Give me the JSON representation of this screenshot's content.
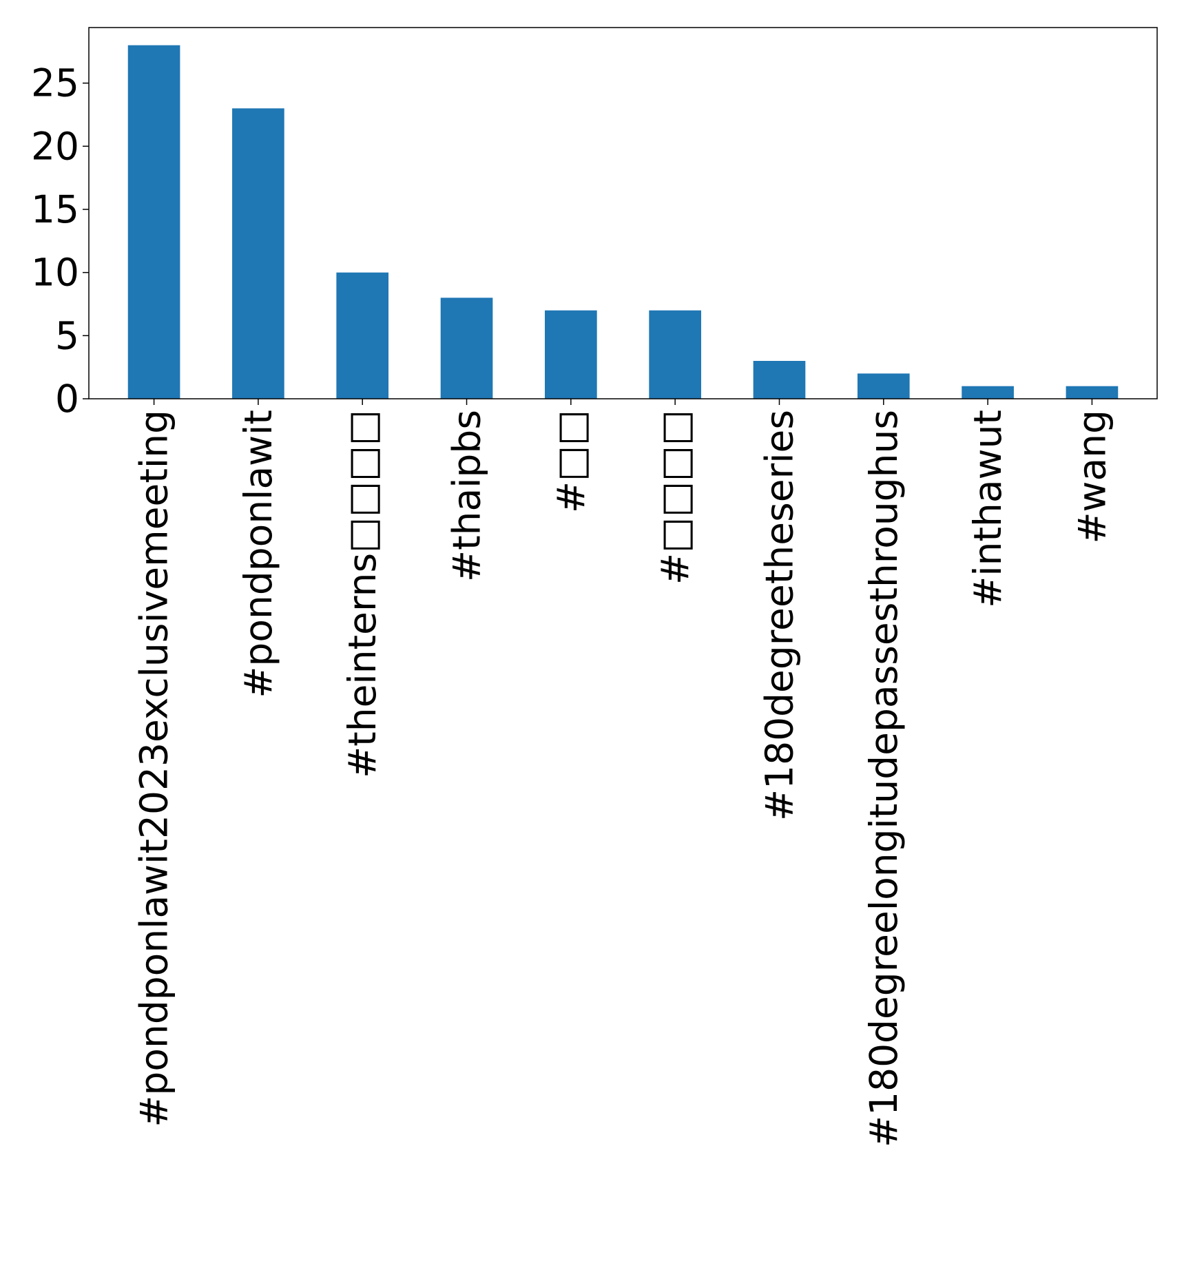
{
  "chart_data": {
    "type": "bar",
    "categories": [
      "#pondponlawit2023exclusivemeeting",
      "#pondponlawit",
      "#theinterns□□□□",
      "#thaipbs",
      "#□□",
      "#□□□□",
      "#180degreetheseries",
      "#180degreelongitudepassesthroughus",
      "#inthawut",
      "#wang"
    ],
    "values": [
      28,
      23,
      10,
      8,
      7,
      7,
      3,
      2,
      1,
      1
    ],
    "y_ticks": [
      "0",
      "5",
      "10",
      "15",
      "20",
      "25"
    ],
    "ylim": [
      0,
      29.4
    ],
    "bar_color": "#1f77b4",
    "grid": false,
    "title": "",
    "xlabel": "",
    "ylabel": ""
  }
}
